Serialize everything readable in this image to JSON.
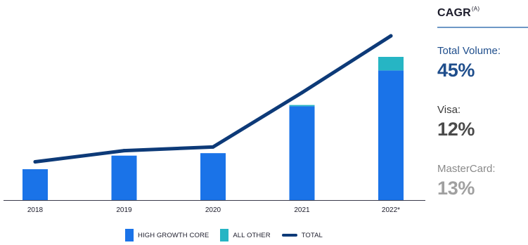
{
  "chart_data": {
    "type": "bar",
    "categories": [
      "2018",
      "2019",
      "2020",
      "2021",
      "2022*"
    ],
    "series": [
      {
        "name": "HIGH GROWTH CORE",
        "kind": "bar",
        "color": "#1a73e8",
        "values": [
          25,
          36,
          38,
          76,
          105
        ]
      },
      {
        "name": "ALL OTHER",
        "kind": "bar",
        "color": "#26b5c4",
        "values": [
          0,
          0,
          0,
          1,
          11
        ]
      },
      {
        "name": "TOTAL",
        "kind": "line",
        "color": "#0d3a78",
        "values": [
          31,
          40,
          43,
          87,
          133
        ]
      }
    ],
    "ylim": [
      0,
      145
    ],
    "grid": false,
    "legend_position": "bottom"
  },
  "cagr": {
    "title": "CAGR",
    "title_note": "(A)",
    "metrics": [
      {
        "label": "Total Volume:",
        "value": "45%",
        "label_color": "#1f4e8c",
        "value_color": "#1f4e8c"
      },
      {
        "label": "Visa:",
        "value": "12%",
        "label_color": "#3a3a3a",
        "value_color": "#4a4a4a"
      },
      {
        "label": "MasterCard:",
        "value": "13%",
        "label_color": "#8a8a8a",
        "value_color": "#a0a0a0"
      }
    ]
  }
}
